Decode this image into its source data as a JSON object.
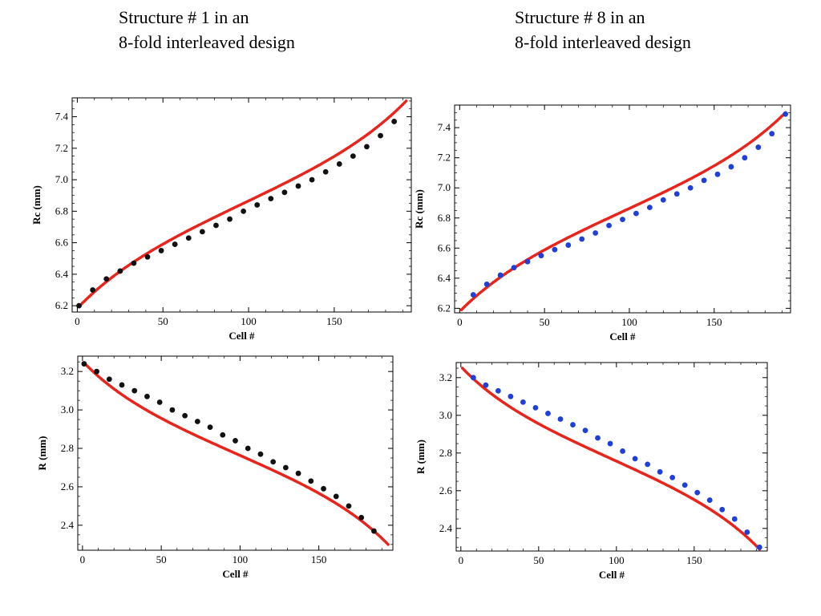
{
  "headings": {
    "left": {
      "line1": "Structure # 1 in an",
      "line2": "8-fold interleaved design"
    },
    "right": {
      "line1": "Structure # 8 in an",
      "line2": "8-fold interleaved design"
    }
  },
  "chart_data": [
    {
      "id": "rc-structure-1",
      "type": "scatter",
      "title": "",
      "xlabel": "Cell #",
      "ylabel": "Rc (mm)",
      "xlim": [
        -3,
        195
      ],
      "ylim": [
        6.16,
        7.52
      ],
      "xticks": [
        0,
        50,
        100,
        150
      ],
      "yticks": [
        6.2,
        6.4,
        6.6,
        6.8,
        7.0,
        7.2,
        7.4
      ],
      "ytick_format": 1,
      "grid": false,
      "colors": {
        "curve": "#e8251c",
        "marker": "#111111"
      },
      "curve": {
        "x0": 1,
        "x1": 192,
        "y0": 6.195,
        "y1": 7.5,
        "c": 5.2,
        "a": 0.495,
        "b": 0.004
      },
      "series": [
        {
          "x": [
            1,
            9,
            17,
            25,
            33,
            41,
            49,
            57,
            65,
            73,
            81,
            89,
            97,
            105,
            113,
            121,
            129,
            137,
            145,
            153,
            161,
            169,
            177,
            185
          ],
          "y": [
            6.2,
            6.3,
            6.37,
            6.42,
            6.47,
            6.51,
            6.55,
            6.59,
            6.63,
            6.67,
            6.71,
            6.75,
            6.8,
            6.84,
            6.88,
            6.92,
            6.96,
            7.0,
            7.05,
            7.1,
            7.15,
            7.21,
            7.28,
            7.37
          ]
        }
      ]
    },
    {
      "id": "rc-structure-8",
      "type": "scatter",
      "title": "",
      "xlabel": "Cell #",
      "ylabel": "Rc (mm)",
      "xlim": [
        -3,
        195
      ],
      "ylim": [
        6.17,
        7.55
      ],
      "xticks": [
        0,
        50,
        100,
        150
      ],
      "yticks": [
        6.2,
        6.4,
        6.6,
        6.8,
        7.0,
        7.2,
        7.4
      ],
      "ytick_format": 1,
      "grid": false,
      "colors": {
        "curve": "#e8251c",
        "marker": "#1f3fd6"
      },
      "curve": {
        "x0": 1,
        "x1": 192,
        "y0": 6.19,
        "y1": 7.5,
        "c": 5.2,
        "a": 0.5,
        "b": 0.004
      },
      "series": [
        {
          "x": [
            8,
            16,
            24,
            32,
            40,
            48,
            56,
            64,
            72,
            80,
            88,
            96,
            104,
            112,
            120,
            128,
            136,
            144,
            152,
            160,
            168,
            176,
            184,
            192
          ],
          "y": [
            6.29,
            6.36,
            6.42,
            6.47,
            6.51,
            6.55,
            6.59,
            6.62,
            6.66,
            6.7,
            6.75,
            6.79,
            6.83,
            6.87,
            6.92,
            6.96,
            7.0,
            7.05,
            7.09,
            7.14,
            7.2,
            7.27,
            7.36,
            7.49
          ]
        }
      ]
    },
    {
      "id": "r-structure-1",
      "type": "scatter",
      "title": "",
      "xlabel": "Cell #",
      "ylabel": "R (mm)",
      "xlim": [
        -3,
        197
      ],
      "ylim": [
        2.27,
        3.28
      ],
      "xticks": [
        0,
        50,
        100,
        150
      ],
      "yticks": [
        2.4,
        2.6,
        2.8,
        3.0,
        3.2
      ],
      "ytick_format": 1,
      "grid": false,
      "colors": {
        "curve": "#e8251c",
        "marker": "#111111"
      },
      "curve": {
        "x0": 1,
        "x1": 194,
        "y0": 3.245,
        "y1": 2.3,
        "c": 5.7,
        "a": -0.3,
        "b": -0.03
      },
      "series": [
        {
          "x": [
            1,
            9,
            17,
            25,
            33,
            41,
            49,
            57,
            65,
            73,
            81,
            89,
            97,
            105,
            113,
            121,
            129,
            137,
            145,
            153,
            161,
            169,
            177,
            185
          ],
          "y": [
            3.24,
            3.2,
            3.16,
            3.13,
            3.1,
            3.07,
            3.04,
            3.0,
            2.97,
            2.94,
            2.91,
            2.87,
            2.84,
            2.8,
            2.77,
            2.73,
            2.7,
            2.67,
            2.63,
            2.59,
            2.55,
            2.5,
            2.44,
            2.37
          ]
        }
      ]
    },
    {
      "id": "r-structure-8",
      "type": "scatter",
      "title": "",
      "xlabel": "Cell #",
      "ylabel": "R (mm)",
      "xlim": [
        -3,
        197
      ],
      "ylim": [
        2.28,
        3.28
      ],
      "xticks": [
        0,
        50,
        100,
        150
      ],
      "yticks": [
        2.4,
        2.6,
        2.8,
        3.0,
        3.2
      ],
      "ytick_format": 1,
      "grid": false,
      "colors": {
        "curve": "#e8251c",
        "marker": "#1f3fd6"
      },
      "curve": {
        "x0": 1,
        "x1": 192,
        "y0": 3.25,
        "y1": 2.29,
        "c": 5.7,
        "a": -0.3,
        "b": -0.03
      },
      "series": [
        {
          "x": [
            8,
            16,
            24,
            32,
            40,
            48,
            56,
            64,
            72,
            80,
            88,
            96,
            104,
            112,
            120,
            128,
            136,
            144,
            152,
            160,
            168,
            176,
            184,
            192
          ],
          "y": [
            3.2,
            3.16,
            3.13,
            3.1,
            3.07,
            3.04,
            3.01,
            2.98,
            2.95,
            2.92,
            2.88,
            2.85,
            2.81,
            2.77,
            2.74,
            2.7,
            2.67,
            2.63,
            2.59,
            2.55,
            2.5,
            2.45,
            2.38,
            2.3
          ]
        }
      ]
    }
  ]
}
